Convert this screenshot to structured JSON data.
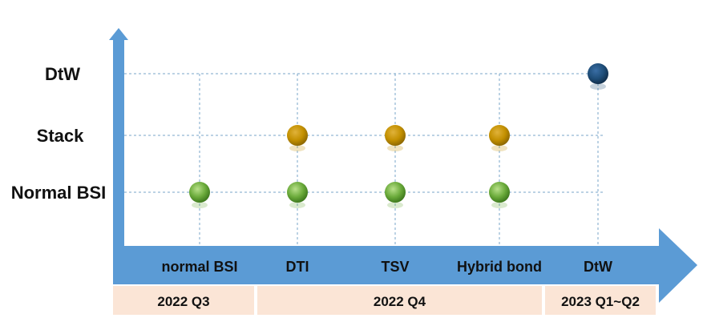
{
  "y_levels": [
    {
      "label": "DtW"
    },
    {
      "label": "Stack"
    },
    {
      "label": "Normal BSI"
    }
  ],
  "x_items": [
    {
      "label": "normal BSI"
    },
    {
      "label": "DTI"
    },
    {
      "label": "TSV"
    },
    {
      "label": "Hybrid bond"
    },
    {
      "label": "DtW"
    }
  ],
  "periods": [
    {
      "label": "2022 Q3",
      "from_item": 0,
      "to_item": 0
    },
    {
      "label": "2022 Q4",
      "from_item": 1,
      "to_item": 3
    },
    {
      "label": "2023 Q1~Q2",
      "from_item": 4,
      "to_item": 4
    }
  ],
  "points": [
    {
      "x_item": "normal BSI",
      "level": "Normal BSI",
      "color": "green"
    },
    {
      "x_item": "DTI",
      "level": "Normal BSI",
      "color": "green"
    },
    {
      "x_item": "TSV",
      "level": "Normal BSI",
      "color": "green"
    },
    {
      "x_item": "Hybrid bond",
      "level": "Normal BSI",
      "color": "green"
    },
    {
      "x_item": "DTI",
      "level": "Stack",
      "color": "gold"
    },
    {
      "x_item": "TSV",
      "level": "Stack",
      "color": "gold"
    },
    {
      "x_item": "Hybrid bond",
      "level": "Stack",
      "color": "gold"
    },
    {
      "x_item": "DtW",
      "level": "DtW",
      "color": "navy"
    }
  ],
  "colors": {
    "axis": "#5b9bd5",
    "period_band": "#fbe5d6",
    "grid": "#7aa6c8",
    "green": "#6aaa3a",
    "gold": "#c39000",
    "navy": "#1f4e79"
  }
}
